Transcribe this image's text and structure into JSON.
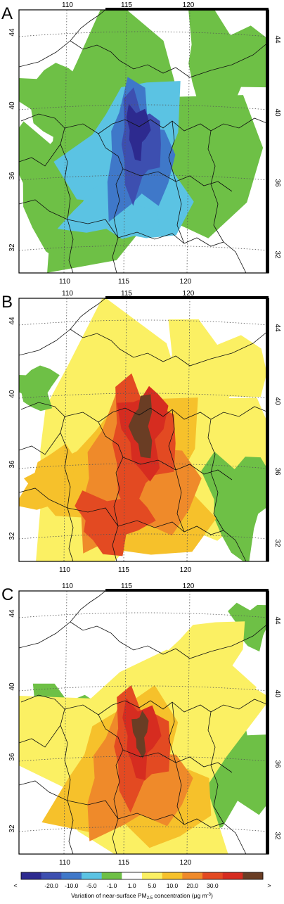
{
  "panels": [
    {
      "letter": "A",
      "field": "negative"
    },
    {
      "letter": "B",
      "field": "positive_strong"
    },
    {
      "letter": "C",
      "field": "positive_moderate"
    }
  ],
  "axes": {
    "top_lon_ticks": [
      "110",
      "115",
      "120"
    ],
    "bottom_lon_ticks": [
      "110",
      "115",
      "120"
    ],
    "left_lat_ticks": [
      "44",
      "40",
      "36",
      "32"
    ],
    "right_lat_ticks": [
      "44",
      "40",
      "36",
      "32"
    ]
  },
  "legend": {
    "less_arrow": "<",
    "more_arrow": ">",
    "ticks": [
      "-20.0",
      "-10.0",
      "-5.0",
      "-1.0",
      "1.0",
      "5.0",
      "10.0",
      "20.0",
      "30.0"
    ],
    "colors": [
      "#2d2a8f",
      "#3d4fb0",
      "#3f78c9",
      "#5bc3e3",
      "#6ec046",
      "#ffffff",
      "#fbf063",
      "#f6c12b",
      "#ef8a2a",
      "#e34a22",
      "#d62c20",
      "#6a3d24"
    ],
    "title_main": "Variation of near-surface PM",
    "title_sub": "2.5",
    "title_tail": " concentration (μg m",
    "title_sup": "-3",
    "title_close": ")"
  }
}
